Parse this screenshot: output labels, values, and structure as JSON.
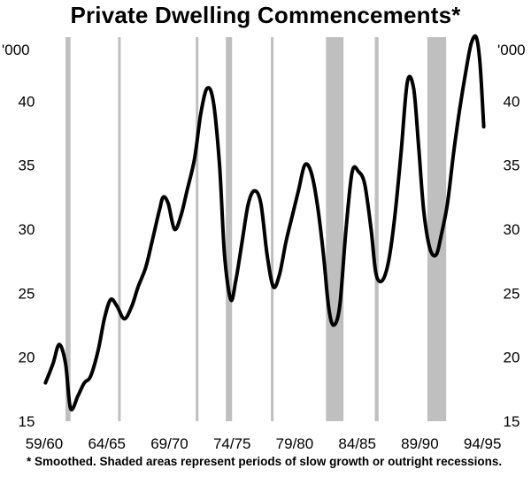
{
  "chart_data": {
    "type": "line",
    "title": "Private Dwelling Commencements*",
    "unit_label": "'000",
    "ylim": [
      15,
      45
    ],
    "y_ticks": [
      15,
      20,
      25,
      30,
      35,
      40
    ],
    "xlim": [
      1959.5,
      1994.7
    ],
    "x_tick_labels": [
      {
        "label": "59/60",
        "value": 1959.5
      },
      {
        "label": "64/65",
        "value": 1964.5
      },
      {
        "label": "69/70",
        "value": 1969.5
      },
      {
        "label": "74/75",
        "value": 1974.5
      },
      {
        "label": "79/80",
        "value": 1979.5
      },
      {
        "label": "84/85",
        "value": 1984.5
      },
      {
        "label": "89/90",
        "value": 1989.5
      },
      {
        "label": "94/95",
        "value": 1994.5
      }
    ],
    "shaded_periods": [
      [
        1961.2,
        1961.6
      ],
      [
        1965.4,
        1965.5
      ],
      [
        1971.6,
        1971.7
      ],
      [
        1974.0,
        1974.5
      ],
      [
        1977.6,
        1977.8
      ],
      [
        1982.0,
        1983.4
      ],
      [
        1985.9,
        1986.2
      ],
      [
        1990.1,
        1991.6
      ]
    ],
    "series": [
      {
        "x": [
          1959.6,
          1960.2,
          1960.7,
          1961.2,
          1961.6,
          1962.2,
          1962.7,
          1963.2,
          1963.8,
          1964.3,
          1964.8,
          1965.3,
          1965.9,
          1966.5,
          1967.0,
          1967.6,
          1968.1,
          1968.7,
          1969.0,
          1969.4,
          1969.9,
          1970.4,
          1970.9,
          1971.5,
          1972.0,
          1972.5,
          1973.0,
          1973.5,
          1973.9,
          1974.4,
          1974.8,
          1975.3,
          1975.8,
          1976.3,
          1976.8,
          1977.3,
          1977.8,
          1978.3,
          1978.8,
          1979.3,
          1979.8,
          1980.3,
          1980.8,
          1981.3,
          1981.8,
          1982.2,
          1982.6,
          1983.1,
          1983.6,
          1984.1,
          1984.6,
          1985.1,
          1985.6,
          1986.0,
          1986.5,
          1987.0,
          1987.5,
          1988.0,
          1988.5,
          1989.0,
          1989.4,
          1989.8,
          1990.3,
          1990.8,
          1991.2,
          1991.7,
          1992.2,
          1992.7,
          1993.2,
          1993.6,
          1994.0,
          1994.3,
          1994.6
        ],
        "y": [
          18.0,
          19.5,
          21.0,
          19.5,
          16.0,
          17.0,
          18.0,
          18.5,
          20.5,
          23.0,
          24.5,
          24.0,
          23.0,
          24.0,
          25.5,
          27.0,
          29.0,
          31.5,
          32.5,
          32.0,
          30.0,
          31.0,
          33.0,
          35.5,
          39.0,
          41.0,
          40.0,
          35.0,
          28.0,
          24.5,
          26.0,
          29.0,
          32.0,
          33.0,
          32.0,
          28.0,
          25.5,
          26.5,
          29.0,
          31.0,
          33.0,
          35.0,
          34.5,
          32.0,
          28.0,
          24.0,
          22.5,
          24.0,
          30.0,
          34.5,
          34.5,
          33.5,
          30.0,
          26.5,
          26.0,
          27.5,
          31.0,
          36.0,
          41.5,
          41.0,
          36.5,
          31.5,
          28.5,
          28.0,
          29.5,
          32.0,
          36.0,
          39.5,
          42.5,
          44.5,
          45.0,
          43.0,
          38.0
        ]
      }
    ]
  },
  "footnote": "* Smoothed. Shaded areas represent periods of slow growth or outright recessions."
}
